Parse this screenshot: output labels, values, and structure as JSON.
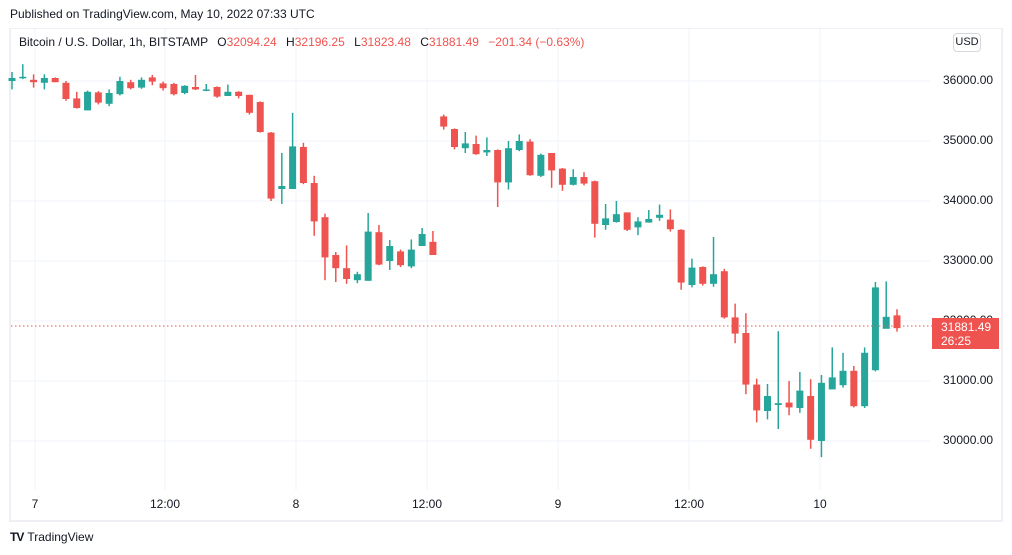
{
  "header": {
    "published": "Published on TradingView.com, May 10, 2022 07:33 UTC"
  },
  "legend": {
    "symbol": "Bitcoin / U.S. Dollar, 1h, BITSTAMP",
    "o_label": "O",
    "o": "32094.24",
    "h_label": "H",
    "h": "32196.25",
    "l_label": "L",
    "l": "31823.48",
    "c_label": "C",
    "c": "31881.49",
    "change": "−201.34 (−0.63%)"
  },
  "currency_button": "USD",
  "price_tag": {
    "price": "31881.49",
    "countdown": "26:25",
    "color": "#ef5350"
  },
  "y_axis": [
    "36000.00",
    "35000.00",
    "34000.00",
    "33000.00",
    "32000.00",
    "31000.00",
    "30000.00"
  ],
  "x_axis": [
    "7",
    "12:00",
    "8",
    "12:00",
    "9",
    "12:00",
    "10"
  ],
  "footer": {
    "brand": "TradingView",
    "logo": "TV"
  },
  "colors": {
    "up": "#26a69a",
    "down": "#ef5350",
    "grid": "#f0f3fa"
  },
  "chart_data": {
    "type": "candlestick",
    "title": "Bitcoin / U.S. Dollar, 1h, BITSTAMP",
    "xlabel": "",
    "ylabel": "USD",
    "ylim": [
      29300,
      36600
    ],
    "x_ticks": [
      "7",
      "12:00",
      "8",
      "12:00",
      "9",
      "12:00",
      "10"
    ],
    "grid": true,
    "last_price": 31881.49,
    "candles": [
      [
        36000,
        36050,
        36150,
        35860
      ],
      [
        36050,
        36070,
        36280,
        36030
      ],
      [
        36020,
        35980,
        36110,
        35890
      ],
      [
        35970,
        36050,
        36110,
        35860
      ],
      [
        36050,
        35980,
        36060,
        35980
      ],
      [
        35970,
        35700,
        36000,
        35670
      ],
      [
        35710,
        35550,
        35820,
        35540
      ],
      [
        35510,
        35820,
        35840,
        35510
      ],
      [
        35810,
        35640,
        35830,
        35610
      ],
      [
        35620,
        35800,
        35860,
        35580
      ],
      [
        35780,
        36000,
        36070,
        35760
      ],
      [
        35980,
        35880,
        36020,
        35860
      ],
      [
        35890,
        36020,
        36060,
        35870
      ],
      [
        36060,
        35990,
        36100,
        35930
      ],
      [
        35960,
        35880,
        35990,
        35840
      ],
      [
        35950,
        35780,
        35970,
        35760
      ],
      [
        35800,
        35920,
        35930,
        35780
      ],
      [
        35900,
        35860,
        36100,
        35850
      ],
      [
        35860,
        35860,
        35950,
        35830
      ],
      [
        35900,
        35740,
        35910,
        35720
      ],
      [
        35750,
        35820,
        35940,
        35750
      ],
      [
        35820,
        35750,
        35830,
        35710
      ],
      [
        35770,
        35470,
        35770,
        35440
      ],
      [
        35650,
        35150,
        35660,
        35140
      ],
      [
        35140,
        34040,
        35150,
        34000
      ],
      [
        34200,
        34250,
        34800,
        33950
      ],
      [
        34200,
        34910,
        35470,
        34200
      ],
      [
        34900,
        34300,
        34970,
        34280
      ],
      [
        34300,
        33660,
        34420,
        33420
      ],
      [
        33730,
        33060,
        33790,
        32680
      ],
      [
        33100,
        32880,
        33150,
        32650
      ],
      [
        32880,
        32700,
        33260,
        32620
      ],
      [
        32680,
        32780,
        32820,
        32630
      ],
      [
        32670,
        33490,
        33800,
        32670
      ],
      [
        33480,
        32940,
        33600,
        32930
      ],
      [
        33000,
        33250,
        33350,
        32850
      ],
      [
        33160,
        32930,
        33190,
        32900
      ],
      [
        32910,
        33190,
        33360,
        32880
      ],
      [
        33250,
        33450,
        33550,
        33290
      ],
      [
        33320,
        33100,
        33500,
        33100
      ],
      [
        35410,
        35240,
        35440,
        35190
      ],
      [
        35200,
        34900,
        35210,
        34860
      ],
      [
        34880,
        34960,
        35150,
        34800
      ],
      [
        34950,
        34780,
        35090,
        34770
      ],
      [
        34810,
        34850,
        35060,
        34750
      ],
      [
        34850,
        34310,
        34860,
        33900
      ],
      [
        34310,
        34880,
        35000,
        34190
      ],
      [
        34850,
        35000,
        35110,
        34830
      ],
      [
        34990,
        34430,
        35030,
        34420
      ],
      [
        34420,
        34770,
        34790,
        34400
      ],
      [
        34800,
        34510,
        34800,
        34220
      ],
      [
        34540,
        34270,
        34550,
        34170
      ],
      [
        34270,
        34400,
        34530,
        34260
      ],
      [
        34400,
        34290,
        34480,
        34260
      ],
      [
        34330,
        33620,
        34340,
        33390
      ],
      [
        33600,
        33710,
        33950,
        33520
      ],
      [
        33650,
        33780,
        34000,
        33640
      ],
      [
        33810,
        33520,
        33810,
        33500
      ],
      [
        33560,
        33660,
        33730,
        33430
      ],
      [
        33640,
        33700,
        33850,
        33640
      ],
      [
        33720,
        33770,
        33940,
        33670
      ],
      [
        33690,
        33530,
        33860,
        33490
      ],
      [
        33520,
        32640,
        33530,
        32520
      ],
      [
        32600,
        32890,
        33040,
        32560
      ],
      [
        32900,
        32620,
        32910,
        32590
      ],
      [
        32620,
        32780,
        33400,
        32570
      ],
      [
        32830,
        32060,
        32870,
        32040
      ],
      [
        32060,
        31790,
        32290,
        31630
      ],
      [
        31800,
        30940,
        32130,
        30780
      ],
      [
        30940,
        30510,
        31040,
        30310
      ],
      [
        30500,
        30750,
        30950,
        30360
      ],
      [
        30600,
        30630,
        31830,
        30200
      ],
      [
        30640,
        30560,
        31000,
        30430
      ],
      [
        30550,
        30840,
        31150,
        30470
      ],
      [
        30750,
        30020,
        31030,
        29870
      ],
      [
        30000,
        30970,
        31100,
        29730
      ],
      [
        30860,
        31060,
        31560,
        30880
      ],
      [
        30930,
        31170,
        31470,
        30890
      ],
      [
        31170,
        30580,
        31250,
        30560
      ],
      [
        30580,
        31470,
        31560,
        30550
      ],
      [
        31180,
        32560,
        32650,
        31160
      ],
      [
        31870,
        32070,
        32660,
        31880
      ],
      [
        32094,
        31881,
        32196,
        31823
      ]
    ]
  }
}
